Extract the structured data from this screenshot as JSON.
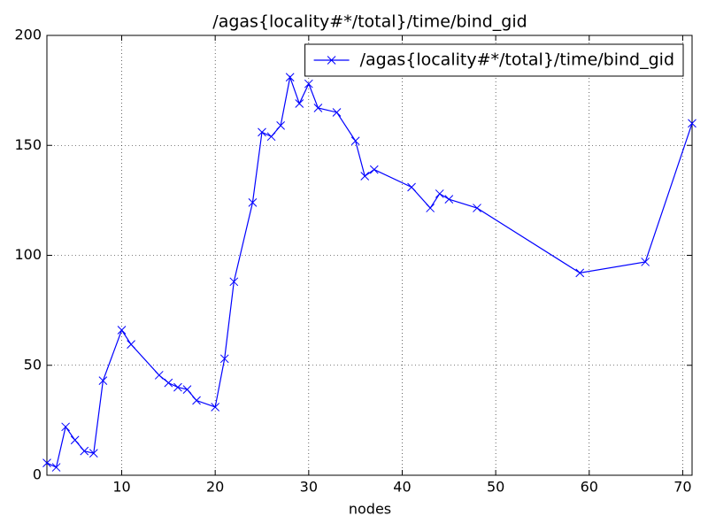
{
  "chart_data": {
    "type": "line",
    "title": "/agas{locality#*/total}/time/bind_gid",
    "x_label": "nodes",
    "x": [
      2,
      3,
      4,
      5,
      6,
      7,
      8,
      10,
      11,
      14,
      15,
      16,
      17,
      18,
      20,
      21,
      22,
      24,
      25,
      26,
      27,
      28,
      29,
      30,
      31,
      33,
      35,
      36,
      37,
      41,
      43,
      44,
      45,
      48,
      59,
      66,
      71
    ],
    "series": [
      {
        "name": "/agas{locality#*/total}/time/bind_gid",
        "color": "#0000ff",
        "values": [
          5.6,
          3.6,
          22,
          16,
          11,
          10,
          43,
          66,
          59.5,
          45.5,
          42,
          40,
          39,
          34,
          31,
          53,
          88,
          124,
          156,
          154,
          159,
          181,
          169,
          178,
          167,
          165,
          152,
          136,
          139,
          131,
          121.5,
          128,
          125.5,
          121.5,
          92,
          97,
          160
        ]
      }
    ],
    "xlim": [
      2,
      71
    ],
    "xticks": [
      10,
      20,
      30,
      40,
      50,
      60,
      70
    ],
    "ylim": [
      0,
      200
    ],
    "yticks": [
      0,
      50,
      100,
      150,
      200
    ],
    "grid": true,
    "legend": "upper right",
    "marker": "x"
  }
}
